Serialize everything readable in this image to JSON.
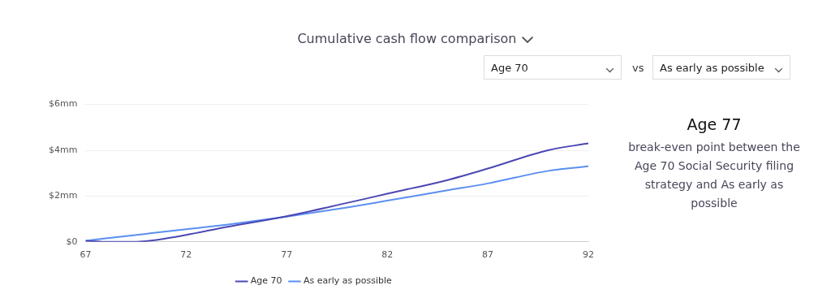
{
  "chart_data": {
    "type": "line",
    "title": "Cumulative cash flow comparison",
    "x": [
      67,
      68,
      69,
      70,
      72,
      74,
      77,
      80,
      82,
      85,
      87,
      90,
      92
    ],
    "series": [
      {
        "name": "Age 70",
        "color": "#4b47b3",
        "values": [
          0.05,
          0,
          0,
          0.03,
          0.3,
          0.65,
          1.12,
          1.7,
          2.1,
          2.7,
          3.2,
          4.0,
          4.3
        ]
      },
      {
        "name": "As early as possible",
        "color": "#5b8ff0",
        "values": [
          0.05,
          0.15,
          0.25,
          0.35,
          0.55,
          0.75,
          1.1,
          1.5,
          1.8,
          2.25,
          2.55,
          3.1,
          3.3
        ]
      }
    ],
    "xlim": [
      67,
      92
    ],
    "xticks": [
      67,
      72,
      77,
      82,
      87,
      92
    ],
    "ylim": [
      0,
      6
    ],
    "yticks": [
      {
        "value": 0,
        "label": "$0"
      },
      {
        "value": 2,
        "label": "$2mm"
      },
      {
        "value": 4,
        "label": "$4mm"
      },
      {
        "value": 6,
        "label": "$6mm"
      }
    ],
    "grid": "y",
    "legend": "bottom",
    "marker": "none",
    "line_style": "solid",
    "annotations": [
      "Age 70",
      "vs",
      "As early as possible",
      "Age 77",
      "break-even point between the Age 70 Social Security filing strategy and As early as possible"
    ]
  }
}
